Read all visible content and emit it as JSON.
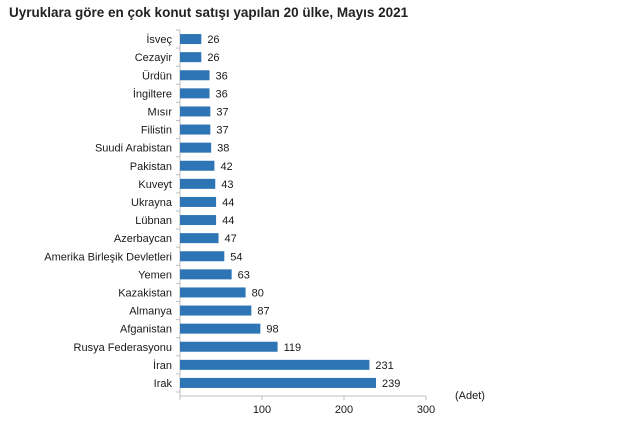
{
  "chart_data": {
    "type": "bar",
    "orientation": "horizontal",
    "title": "Uyruklara göre en çok konut satışı yapılan 20 ülke, Mayıs 2021",
    "categories": [
      "İsveç",
      "Cezayir",
      "Ürdün",
      "İngiltere",
      "Mısır",
      "Filistin",
      "Suudi Arabistan",
      "Pakistan",
      "Kuveyt",
      "Ukrayna",
      "Lübnan",
      "Azerbaycan",
      "Amerika Birleşik Devletleri",
      "Yemen",
      "Kazakistan",
      "Almanya",
      "Afganistan",
      "Rusya Federasyonu",
      "İran",
      "Irak"
    ],
    "values": [
      26,
      26,
      36,
      36,
      37,
      37,
      38,
      42,
      43,
      44,
      44,
      47,
      54,
      63,
      80,
      87,
      98,
      119,
      231,
      239
    ],
    "value_labels": [
      "26",
      "26",
      "36",
      "36",
      "37",
      "37",
      "38",
      "42",
      "43",
      "44",
      "44",
      "47",
      "54",
      "63",
      "80",
      "87",
      "98",
      "119",
      "231",
      "239"
    ],
    "xticks": [
      "100",
      "200",
      "300"
    ],
    "xtick_values": [
      100,
      200,
      300
    ],
    "xlim": [
      0,
      300
    ],
    "unit_label": "(Adet)",
    "bar_color": "#2e75b6",
    "grid": false,
    "legend": "none"
  }
}
